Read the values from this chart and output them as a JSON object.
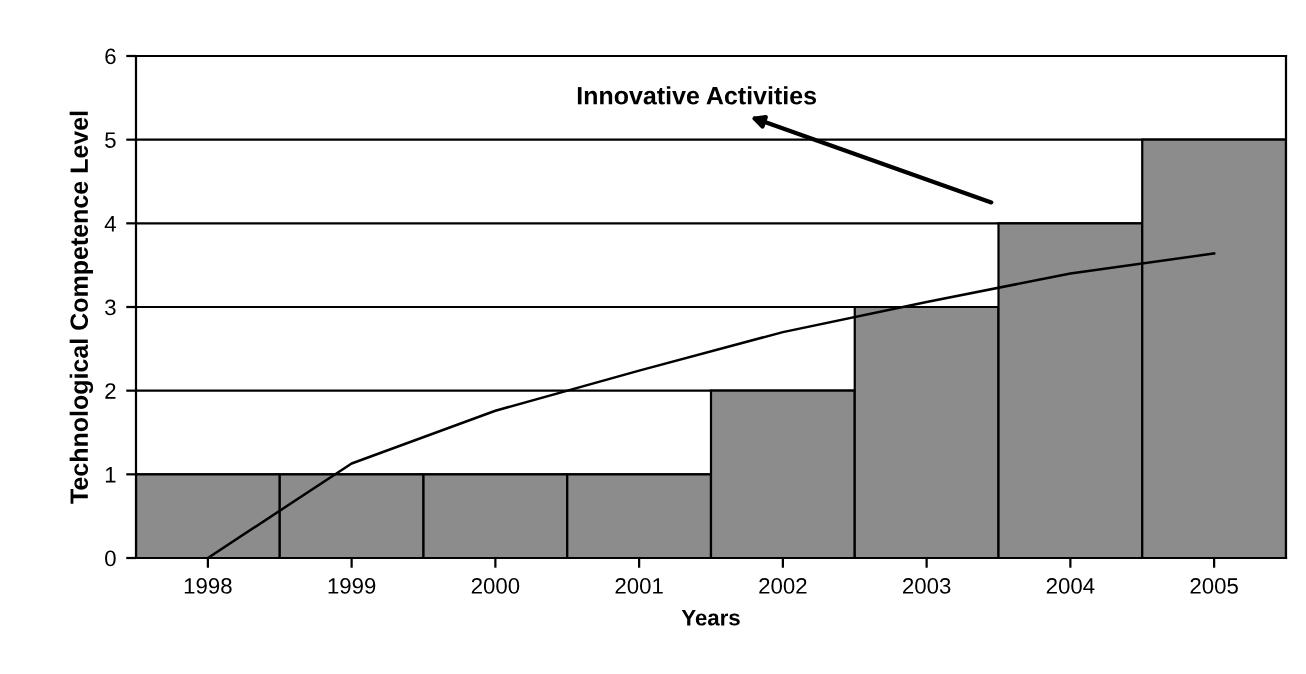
{
  "chart_data": {
    "type": "bar",
    "xlabel": "Years",
    "ylabel": "Technological Competence Level",
    "categories": [
      "1998",
      "1999",
      "2000",
      "2001",
      "2002",
      "2003",
      "2004",
      "2005"
    ],
    "series": [
      {
        "color": "#8c8c8c",
        "values": [
          1,
          1,
          1,
          1,
          2,
          3,
          4,
          5
        ]
      },
      {
        "type": "line",
        "color": "#000000",
        "values": [
          0,
          1.13,
          1.76,
          2.24,
          2.7,
          3.06,
          3.4,
          3.64
        ]
      }
    ],
    "ylim": [
      0,
      6
    ],
    "yticks": [
      0,
      1,
      2,
      3,
      4,
      5,
      6
    ],
    "grid": "y",
    "annotations": [
      "Innovative Activities"
    ]
  }
}
